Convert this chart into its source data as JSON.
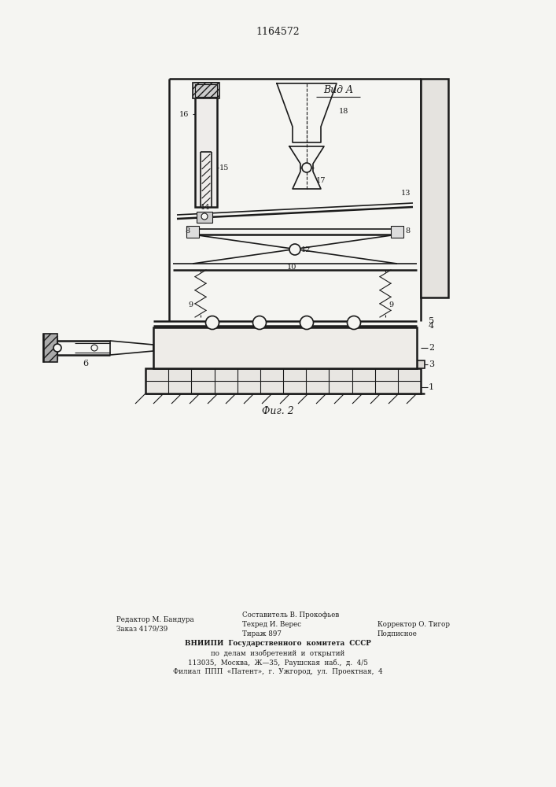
{
  "title": "1164572",
  "fig_label": "Фиг. 2",
  "vid_label": "Вид A",
  "background_color": "#f5f5f2",
  "line_color": "#1a1a1a",
  "footer_col1_line1": "Редактор М. Бандура",
  "footer_col1_line2": "Заказ 4179/39",
  "footer_col2_line1": "Составитель В. Прокофьев",
  "footer_col2_line2": "Техред И. Верес",
  "footer_col2_line3": "Тираж 897",
  "footer_col3_line2": "Корректор О. Тигор",
  "footer_col3_line3": "Подписное",
  "footer_center1": "ВНИИПИ  Государственного  комитета  СССР",
  "footer_center2": "по  делам  изобретений  и  открытий",
  "footer_center3": "113035,  Москва,  Ж—35,  Раушская  наб.,  д.  4/5",
  "footer_center4": "Филиал  ППП  «Патент»,  г.  Ужгород,  ул.  Проектная,  4"
}
